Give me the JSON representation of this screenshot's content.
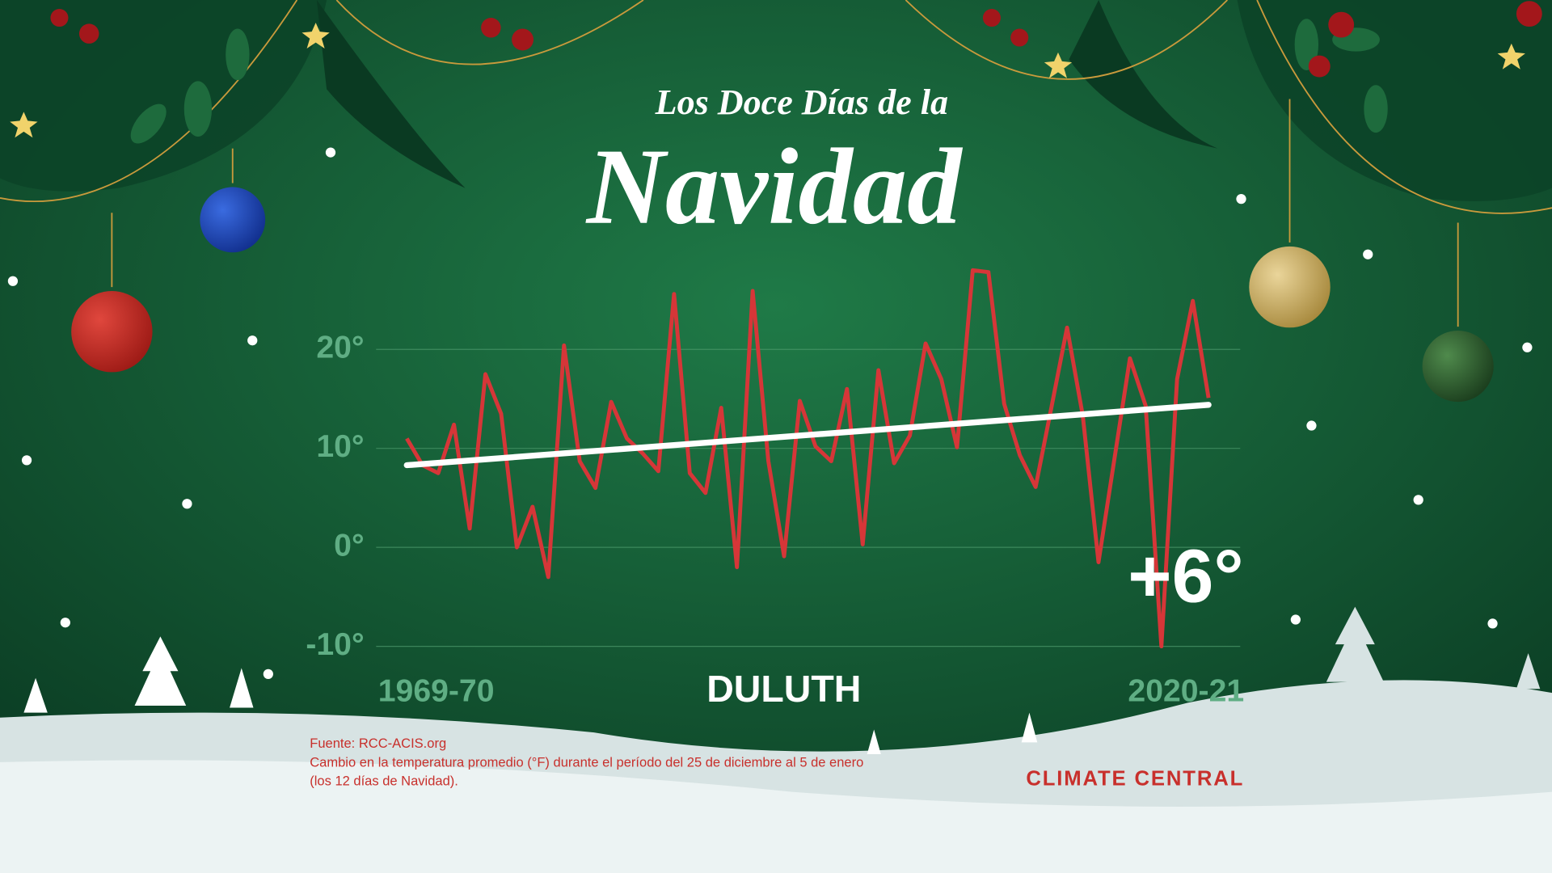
{
  "chart_data": {
    "type": "line",
    "title": "Los Doce Días de la",
    "subtitle": "Navidad",
    "location": "DULUTH",
    "annotation": "+6°",
    "source": "Fuente: RCC-ACIS.org",
    "note_lines": [
      "Cambio en la temperatura promedio (°F) durante el período del 25 de diciembre al 5 de enero",
      "(los 12 días de Navidad)."
    ],
    "logo": "CLIMATE CENTRAL",
    "categories": [
      "1969-70",
      null,
      null,
      null,
      null,
      null,
      null,
      null,
      null,
      null,
      null,
      null,
      null,
      null,
      null,
      null,
      null,
      null,
      null,
      null,
      null,
      null,
      null,
      null,
      null,
      null,
      null,
      null,
      null,
      null,
      null,
      null,
      null,
      null,
      null,
      null,
      null,
      null,
      null,
      null,
      null,
      null,
      null,
      null,
      null,
      null,
      null,
      null,
      null,
      null,
      null,
      "2020-21"
    ],
    "values": [
      11,
      8.3,
      7.5,
      12.4,
      1.9,
      17.5,
      13.5,
      0,
      4.1,
      -3,
      20.4,
      8.7,
      6,
      14.7,
      11,
      9.5,
      7.7,
      25.6,
      7.5,
      5.5,
      14.1,
      -2,
      25.9,
      8.7,
      -0.9,
      14.8,
      10.2,
      8.7,
      16,
      0.3,
      17.9,
      8.5,
      11.3,
      20.6,
      17,
      10.1,
      28,
      27.8,
      14.5,
      9.3,
      6.1,
      14.1,
      22.2,
      13.3,
      -1.5,
      8.8,
      19.1,
      14.3,
      -10,
      17,
      24.9,
      15.1
    ],
    "color": "#d63638",
    "trend": {
      "values": [
        8.3,
        14.4
      ],
      "color": "#ffffff"
    },
    "ylim": [
      -10,
      30
    ],
    "yticks": [
      {
        "value": -10,
        "label": "-10°"
      },
      {
        "value": 0,
        "label": "0°"
      },
      {
        "value": 10,
        "label": "10°"
      },
      {
        "value": 20,
        "label": "20°"
      }
    ],
    "grid": true
  }
}
